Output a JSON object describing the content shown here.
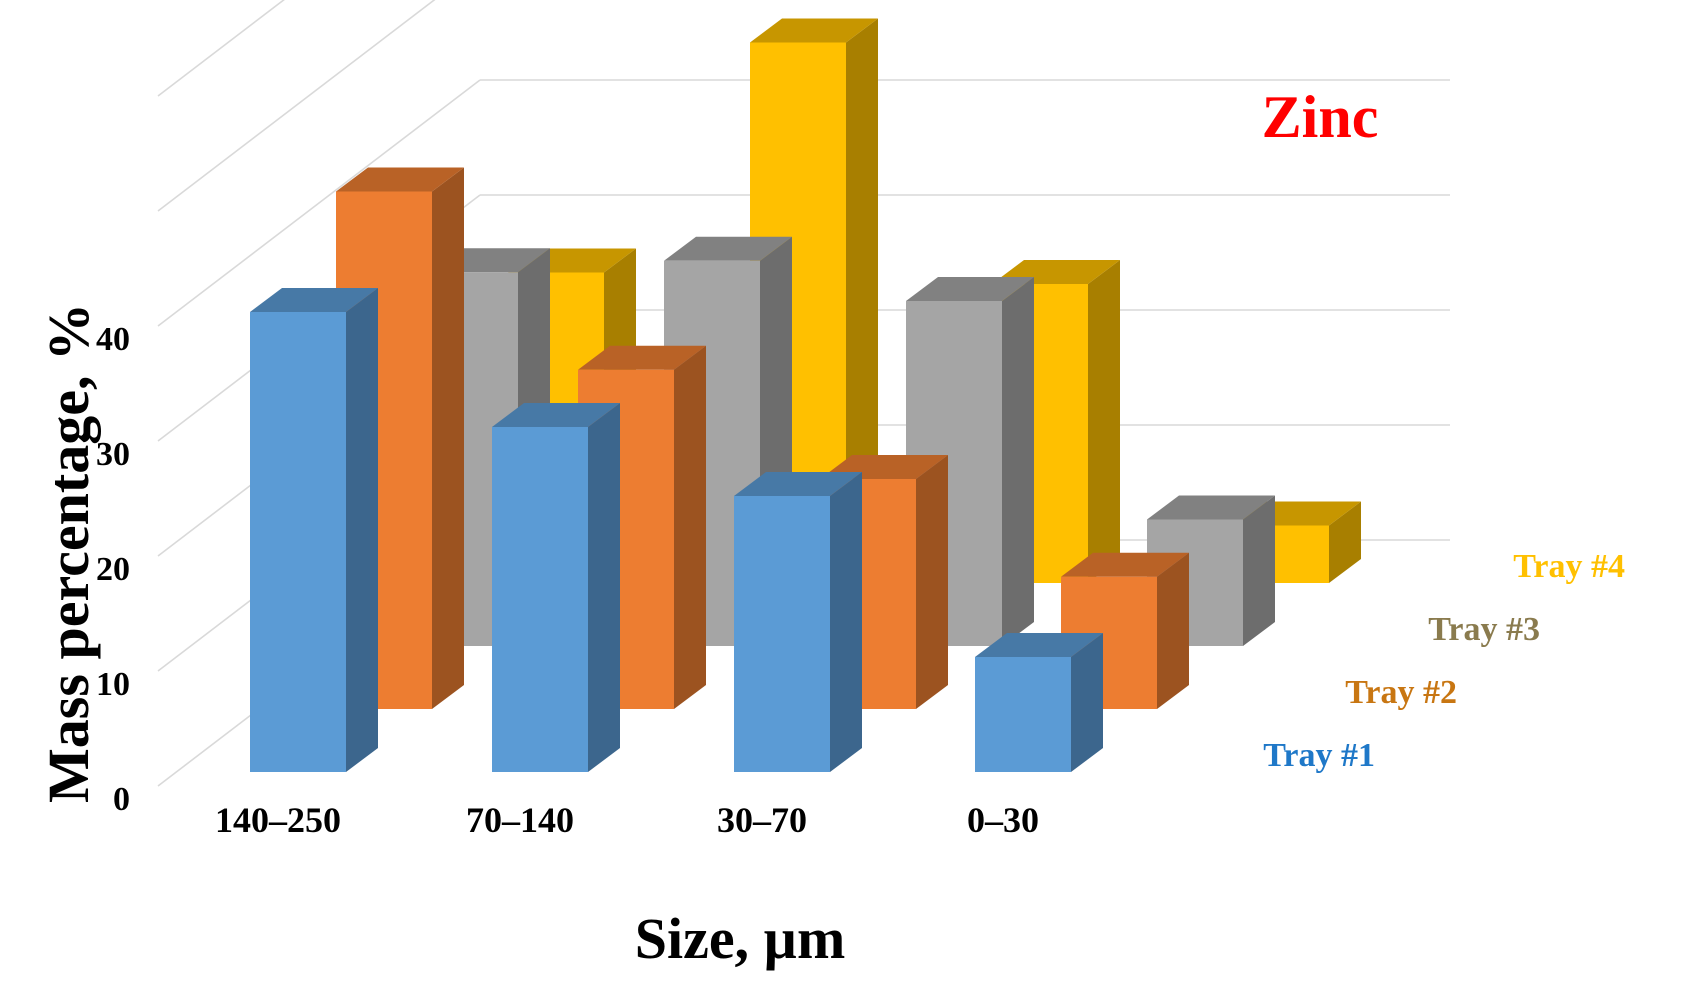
{
  "chart_data": {
    "type": "bar",
    "subtype": "3d-clustered-column",
    "title": "Zinc",
    "xlabel": "Size, µm",
    "ylabel": "Mass percentage, %",
    "ylim": [
      0,
      60
    ],
    "yticks": [
      0,
      10,
      20,
      30,
      40
    ],
    "grid": true,
    "legend_position": "right",
    "categories": [
      "140–250",
      "70–140",
      "30–70",
      "0–30"
    ],
    "series": [
      {
        "name": "Tray #1",
        "color": "#5B9BD5",
        "values": [
          40.0,
          30.0,
          24.0,
          10.0
        ]
      },
      {
        "name": "Tray #2",
        "color": "#ED7D31",
        "values": [
          45.0,
          29.5,
          20.0,
          11.5
        ]
      },
      {
        "name": "Tray #3",
        "color": "#A5A5A5",
        "values": [
          32.5,
          33.5,
          30.0,
          11.0
        ]
      },
      {
        "name": "Tray #4",
        "color": "#FFC000",
        "values": [
          27.0,
          47.0,
          26.0,
          5.0
        ]
      }
    ],
    "legend_colors": [
      "#1F78C8",
      "#C87612",
      "#8A7B4E",
      "#FFC000"
    ],
    "title_color": "#FF0000"
  }
}
